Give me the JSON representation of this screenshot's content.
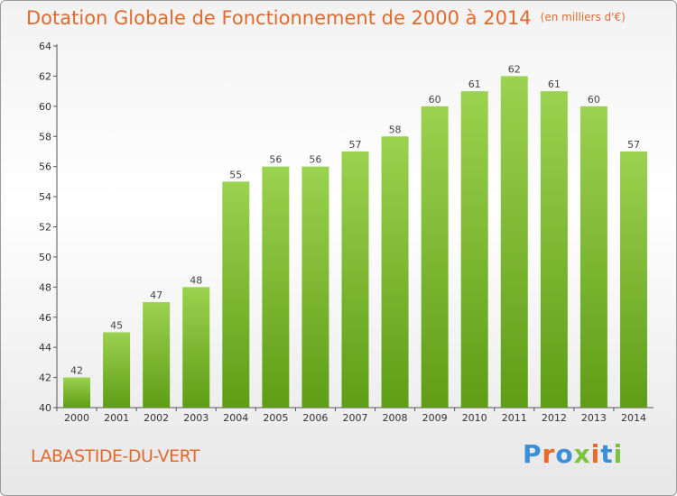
{
  "title": "Dotation Globale de Fonctionnement de 2000 à 2014",
  "unit_note": "(en milliers d'€)",
  "commune": "LABASTIDE-DU-VERT",
  "brand": {
    "text": "Proxiti",
    "colors": [
      "#3a8fd8",
      "#e96a2a",
      "#3a8fd8",
      "#7cc242",
      "#e96a2a",
      "#3a8fd8",
      "#7cc242"
    ]
  },
  "colors": {
    "title": "#e06a2e",
    "bar_top": "#9bd24f",
    "bar_bottom": "#5f9d17"
  },
  "chart_data": {
    "type": "bar",
    "categories": [
      "2000",
      "2001",
      "2002",
      "2003",
      "2004",
      "2005",
      "2006",
      "2007",
      "2008",
      "2009",
      "2010",
      "2011",
      "2012",
      "2013",
      "2014"
    ],
    "values": [
      42,
      45,
      47,
      48,
      55,
      56,
      56,
      57,
      58,
      60,
      61,
      62,
      61,
      60,
      57
    ],
    "ylim": [
      40,
      64
    ],
    "yticks": [
      40,
      42,
      44,
      46,
      48,
      50,
      52,
      54,
      56,
      58,
      60,
      62,
      64
    ],
    "grid": false,
    "legend": "none"
  }
}
